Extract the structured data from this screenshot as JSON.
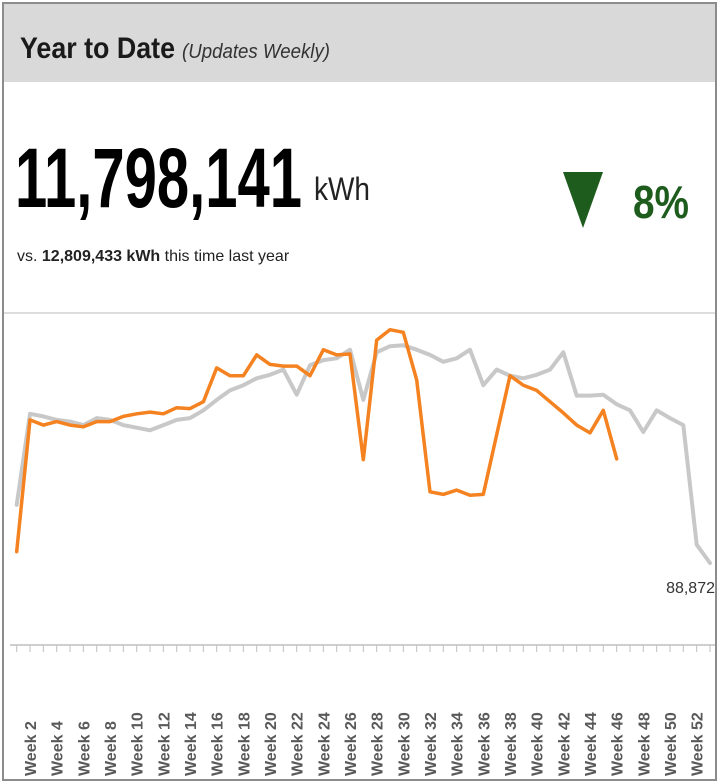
{
  "summary": {
    "title": "Year to Date",
    "subtitle": "(Updates Weekly)",
    "total": "11,798,141",
    "unit": "kWh",
    "comparison_prefix": "vs.",
    "comparison_value": "12,809,433 kWh",
    "comparison_suffix": "this time last year",
    "change": "8%",
    "change_color": "#1e5c1e"
  },
  "chart_data": {
    "type": "line",
    "categories": [
      null,
      "Week 2",
      null,
      "Week 4",
      null,
      "Week 6",
      null,
      "Week 8",
      null,
      "Week 10",
      null,
      "Week 12",
      null,
      "Week 14",
      null,
      "Week 16",
      null,
      "Week 18",
      null,
      "Week 20",
      null,
      "Week 22",
      null,
      "Week 24",
      null,
      "Week 26",
      null,
      "Week 28",
      null,
      "Week 30",
      null,
      "Week 32",
      null,
      "Week 34",
      null,
      "Week 36",
      null,
      "Week 38",
      null,
      "Week 40",
      null,
      "Week 42",
      null,
      "Week 44",
      null,
      "Week 46",
      null,
      "Week 48",
      null,
      "Week 50",
      null,
      "Week 52",
      null
    ],
    "ylim": [
      0,
      375000
    ],
    "series": [
      {
        "color": "#c8c8c8",
        "values": [
          156000,
          261000,
          258000,
          254000,
          252000,
          248000,
          256000,
          254000,
          248000,
          245000,
          242000,
          248000,
          254000,
          256000,
          265000,
          277000,
          288000,
          294000,
          302000,
          306000,
          312000,
          283000,
          317000,
          323000,
          325000,
          335000,
          277000,
          332000,
          339000,
          340000,
          335000,
          329000,
          321000,
          325000,
          335000,
          294000,
          312000,
          305000,
          302000,
          306000,
          312000,
          332000,
          282000,
          282000,
          283000,
          272000,
          265000,
          240000,
          265000,
          256000,
          248000,
          110000,
          88872
        ],
        "value_labels": [
          null,
          null,
          null,
          null,
          null,
          null,
          null,
          null,
          null,
          null,
          null,
          null,
          null,
          null,
          null,
          null,
          null,
          null,
          null,
          null,
          null,
          null,
          null,
          null,
          null,
          null,
          null,
          null,
          null,
          null,
          null,
          null,
          null,
          null,
          null,
          null,
          null,
          null,
          null,
          null,
          null,
          null,
          null,
          null,
          null,
          null,
          null,
          null,
          null,
          null,
          null,
          null,
          "88,872"
        ]
      },
      {
        "color": "#f58220",
        "values": [
          102000,
          254000,
          248000,
          252000,
          248000,
          246000,
          252000,
          252000,
          258000,
          261000,
          263000,
          261000,
          268000,
          267000,
          275000,
          314000,
          305000,
          305000,
          329000,
          318000,
          316000,
          316000,
          305000,
          335000,
          329000,
          330000,
          208000,
          346000,
          358000,
          355000,
          300000,
          171000,
          168000,
          173000,
          167000,
          168000,
          237000,
          305000,
          294000,
          288000,
          275000,
          262000,
          248000,
          239000,
          265000,
          209000,
          null,
          null,
          null,
          null,
          null,
          null,
          null
        ]
      }
    ]
  }
}
